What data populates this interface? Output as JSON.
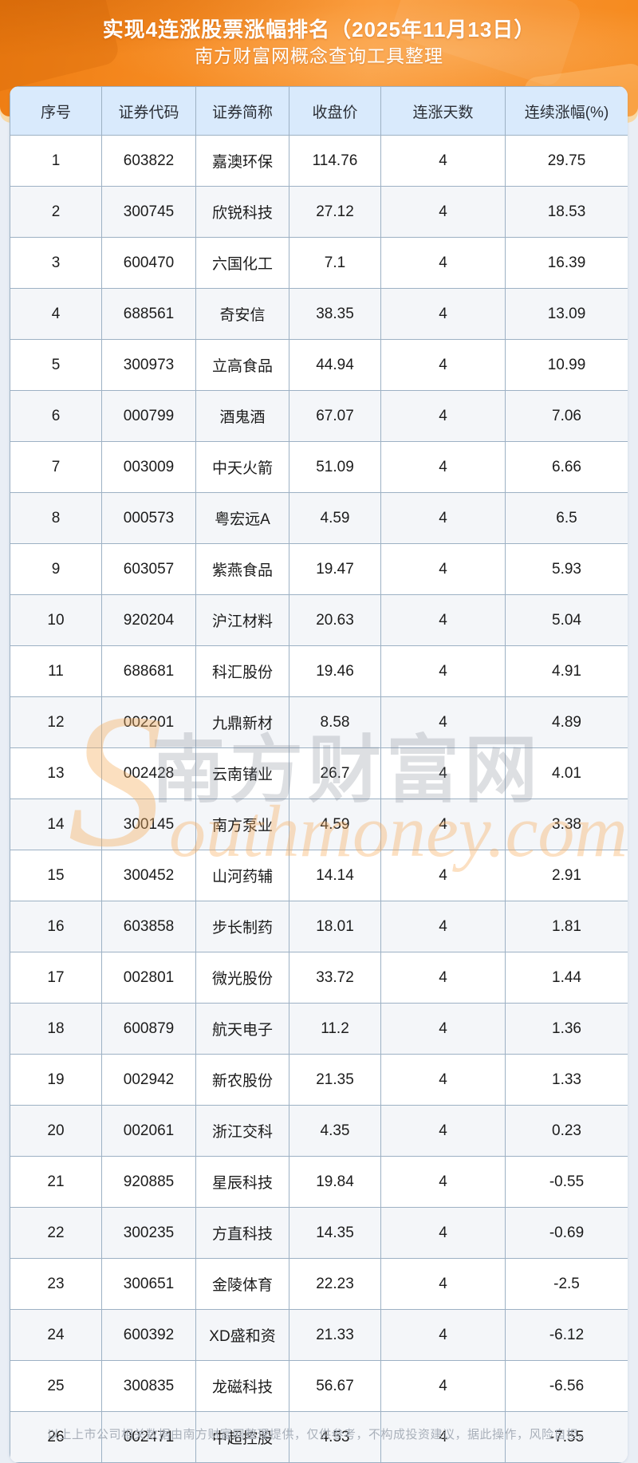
{
  "header": {
    "title": "实现4连涨股票涨幅排名（2025年11月13日）",
    "subtitle": "南方财富网概念查询工具整理"
  },
  "table": {
    "columns": [
      "序号",
      "证券代码",
      "证券简称",
      "收盘价",
      "连涨天数",
      "连续涨幅(%)"
    ],
    "rows": [
      [
        "1",
        "603822",
        "嘉澳环保",
        "114.76",
        "4",
        "29.75"
      ],
      [
        "2",
        "300745",
        "欣锐科技",
        "27.12",
        "4",
        "18.53"
      ],
      [
        "3",
        "600470",
        "六国化工",
        "7.1",
        "4",
        "16.39"
      ],
      [
        "4",
        "688561",
        "奇安信",
        "38.35",
        "4",
        "13.09"
      ],
      [
        "5",
        "300973",
        "立高食品",
        "44.94",
        "4",
        "10.99"
      ],
      [
        "6",
        "000799",
        "酒鬼酒",
        "67.07",
        "4",
        "7.06"
      ],
      [
        "7",
        "003009",
        "中天火箭",
        "51.09",
        "4",
        "6.66"
      ],
      [
        "8",
        "000573",
        "粤宏远A",
        "4.59",
        "4",
        "6.5"
      ],
      [
        "9",
        "603057",
        "紫燕食品",
        "19.47",
        "4",
        "5.93"
      ],
      [
        "10",
        "920204",
        "沪江材料",
        "20.63",
        "4",
        "5.04"
      ],
      [
        "11",
        "688681",
        "科汇股份",
        "19.46",
        "4",
        "4.91"
      ],
      [
        "12",
        "002201",
        "九鼎新材",
        "8.58",
        "4",
        "4.89"
      ],
      [
        "13",
        "002428",
        "云南锗业",
        "26.7",
        "4",
        "4.01"
      ],
      [
        "14",
        "300145",
        "南方泵业",
        "4.59",
        "4",
        "3.38"
      ],
      [
        "15",
        "300452",
        "山河药辅",
        "14.14",
        "4",
        "2.91"
      ],
      [
        "16",
        "603858",
        "步长制药",
        "18.01",
        "4",
        "1.81"
      ],
      [
        "17",
        "002801",
        "微光股份",
        "33.72",
        "4",
        "1.44"
      ],
      [
        "18",
        "600879",
        "航天电子",
        "11.2",
        "4",
        "1.36"
      ],
      [
        "19",
        "002942",
        "新农股份",
        "21.35",
        "4",
        "1.33"
      ],
      [
        "20",
        "002061",
        "浙江交科",
        "4.35",
        "4",
        "0.23"
      ],
      [
        "21",
        "920885",
        "星辰科技",
        "19.84",
        "4",
        "-0.55"
      ],
      [
        "22",
        "300235",
        "方直科技",
        "14.35",
        "4",
        "-0.69"
      ],
      [
        "23",
        "300651",
        "金陵体育",
        "22.23",
        "4",
        "-2.5"
      ],
      [
        "24",
        "600392",
        "XD盛和资",
        "21.33",
        "4",
        "-6.12"
      ],
      [
        "25",
        "300835",
        "龙磁科技",
        "56.67",
        "4",
        "-6.56"
      ],
      [
        "26",
        "002471",
        "中超控股",
        "4.53",
        "4",
        "-7.55"
      ]
    ]
  },
  "watermark": {
    "big_s": "S",
    "cn_text": "南方财富网",
    "en_text": "outhmoney.com"
  },
  "footer": {
    "disclaimer": "以上上市公司相关数据由南方财富网整理提供，仅供参考，不构成投资建议，据此操作，风险自担。"
  },
  "colors": {
    "page_bg": "#e9eef5",
    "orange_start": "#ee7d12",
    "orange_mid": "#fa9d3f",
    "header_cell_bg": "#d9eafc",
    "alt_row_bg": "#f4f6f9",
    "border": "#9db1c4",
    "title_text": "#ffffff",
    "cell_text": "#1c1c1c",
    "footer_text": "#a9b0ba"
  }
}
